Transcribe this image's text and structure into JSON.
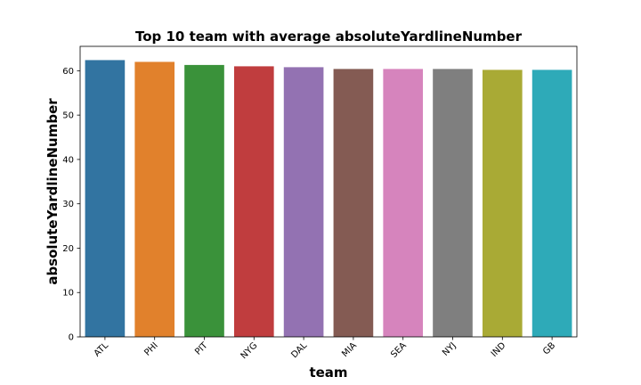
{
  "chart_data": {
    "type": "bar",
    "title": "Top 10 team with average absoluteYardlineNumber",
    "xlabel": "team",
    "ylabel": "absoluteYardlineNumber",
    "categories": [
      "ATL",
      "PHI",
      "PIT",
      "NYG",
      "DAL",
      "MIA",
      "SEA",
      "NYJ",
      "IND",
      "GB"
    ],
    "values": [
      62.4,
      62.0,
      61.3,
      61.0,
      60.8,
      60.4,
      60.4,
      60.4,
      60.2,
      60.2
    ],
    "colors": [
      "#3274a1",
      "#e1812c",
      "#3a923a",
      "#c03d3e",
      "#9372b2",
      "#845b53",
      "#d684bd",
      "#7f7f7f",
      "#a9aa35",
      "#2eaab8"
    ],
    "ylim": [
      0,
      65.5
    ],
    "yticks": [
      0,
      10,
      20,
      30,
      40,
      50,
      60
    ],
    "grid": false
  }
}
